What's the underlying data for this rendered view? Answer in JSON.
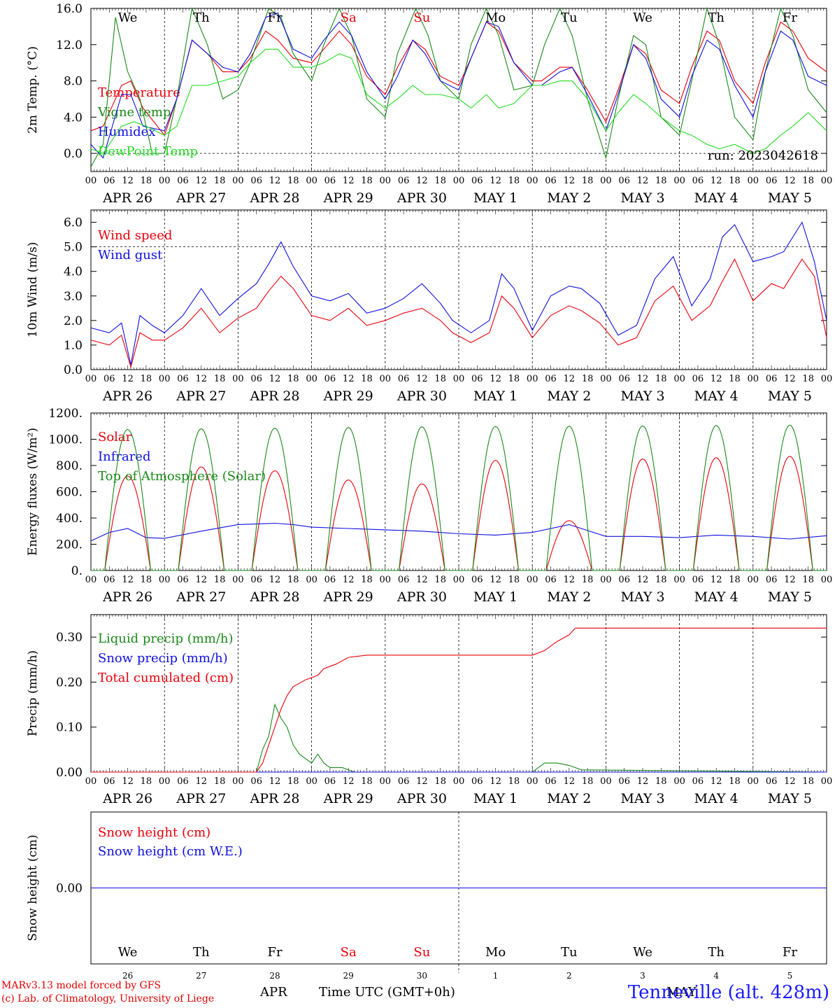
{
  "colors": {
    "red": "#e8000b",
    "green": "#1a8a1a",
    "blue": "#1010e0",
    "lightgreen": "#22dd22",
    "purple": "#8000a0",
    "axis": "#000000"
  },
  "time_axis": {
    "hour_labels": [
      "00",
      "06",
      "12",
      "18"
    ],
    "date_labels": [
      "APR 26",
      "APR 27",
      "APR 28",
      "APR 29",
      "APR 30",
      "MAY  1",
      "MAY  2",
      "MAY  3",
      "MAY  4",
      "MAY  5"
    ],
    "weekdays": [
      "We",
      "Th",
      "Fr",
      "Sa",
      "Su",
      "Mo",
      "Tu",
      "We",
      "Th",
      "Fr"
    ],
    "weekday_colors": [
      "black",
      "black",
      "black",
      "red",
      "red",
      "black",
      "black",
      "black",
      "black",
      "black"
    ],
    "day_numbers": [
      "26",
      "27",
      "28",
      "29",
      "30",
      "1",
      "2",
      "3",
      "4",
      "5"
    ],
    "month_labels": [
      "APR",
      "MAY"
    ],
    "xlabel": "Time UTC (GMT+0h)"
  },
  "footer": {
    "model_line": "MARv3.13 model forced by GFS",
    "credit_line": "(c) Lab. of Climatology, University of Liege",
    "station": "Tenneville (alt. 428m)"
  },
  "chart_data": [
    {
      "type": "line",
      "id": "temp",
      "ylabel": "2m Temp. (°C)",
      "ylim": [
        -2.0,
        16.0
      ],
      "yticks": [
        "16.0",
        "12.0",
        "8.0",
        "4.0",
        "0.0"
      ],
      "ytick_values": [
        16,
        12,
        8,
        4,
        0
      ],
      "hline": 0,
      "annotation": "run: 2023042618",
      "x_unit": "hours since APR 26 00 UTC",
      "x_range": [
        0,
        240
      ],
      "series": [
        {
          "name": "Temperature",
          "color": "red",
          "x": [
            0,
            4,
            10,
            13,
            17,
            24,
            28,
            33,
            38,
            43,
            48,
            52,
            57,
            61,
            66,
            72,
            76,
            81,
            85,
            90,
            96,
            100,
            105,
            109,
            114,
            120,
            124,
            129,
            133,
            138,
            144,
            147,
            153,
            157,
            162,
            168,
            172,
            177,
            181,
            186,
            192,
            196,
            201,
            205,
            210,
            216,
            220,
            225,
            229,
            234,
            240
          ],
          "y": [
            2.5,
            3.0,
            7.5,
            8.0,
            5.0,
            2.0,
            6.0,
            12.5,
            11.0,
            9.0,
            9.0,
            10.5,
            13.5,
            12.5,
            10.5,
            10.0,
            11.5,
            13.5,
            12.0,
            8.5,
            6.5,
            9.5,
            12.5,
            11.5,
            8.5,
            7.5,
            10.5,
            14.5,
            13.5,
            10.0,
            8.0,
            8.0,
            9.5,
            9.5,
            7.0,
            3.5,
            7.0,
            12.0,
            11.0,
            7.0,
            5.5,
            9.5,
            13.5,
            12.5,
            8.0,
            5.5,
            10.0,
            14.5,
            13.5,
            10.5,
            9.0
          ]
        },
        {
          "name": "Vigne temp",
          "color": "green",
          "x": [
            0,
            4,
            8,
            12,
            16,
            20,
            24,
            28,
            33,
            38,
            43,
            48,
            52,
            58,
            62,
            66,
            72,
            76,
            81,
            85,
            90,
            96,
            100,
            106,
            110,
            114,
            120,
            124,
            129,
            133,
            138,
            144,
            148,
            153,
            157,
            162,
            168,
            172,
            177,
            181,
            186,
            192,
            196,
            201,
            205,
            210,
            216,
            220,
            225,
            229,
            234,
            240
          ],
          "y": [
            -1.5,
            1.0,
            15.0,
            9.0,
            6.0,
            0.0,
            0.0,
            6.0,
            16.0,
            12.0,
            6.0,
            7.0,
            10.0,
            16.0,
            15.0,
            11.0,
            8.0,
            12.0,
            16.0,
            13.0,
            6.0,
            4.0,
            11.0,
            16.0,
            13.0,
            8.0,
            6.0,
            12.0,
            16.0,
            13.0,
            7.0,
            7.5,
            12.0,
            16.0,
            13.0,
            6.0,
            -0.5,
            6.0,
            13.0,
            12.0,
            4.0,
            2.0,
            8.0,
            16.0,
            12.0,
            4.0,
            1.5,
            9.0,
            16.0,
            13.0,
            7.0,
            4.5
          ]
        },
        {
          "name": "Humidex",
          "color": "blue",
          "x": [
            0,
            4,
            10,
            13,
            17,
            24,
            28,
            33,
            38,
            43,
            48,
            52,
            57,
            61,
            66,
            72,
            76,
            81,
            85,
            90,
            96,
            100,
            105,
            109,
            114,
            120,
            124,
            129,
            133,
            138,
            144,
            147,
            153,
            157,
            162,
            168,
            172,
            177,
            181,
            186,
            192,
            196,
            201,
            205,
            210,
            216,
            220,
            225,
            229,
            234,
            240
          ],
          "y": [
            1.0,
            -0.5,
            6.5,
            6.5,
            3.0,
            2.5,
            6.0,
            12.5,
            11.0,
            9.5,
            9.0,
            11.0,
            15.0,
            15.5,
            11.5,
            10.5,
            12.5,
            14.5,
            13.0,
            9.0,
            6.0,
            8.5,
            12.5,
            11.0,
            8.0,
            7.0,
            10.5,
            14.5,
            14.0,
            10.0,
            7.5,
            7.5,
            9.0,
            9.5,
            6.5,
            2.5,
            6.5,
            12.0,
            10.5,
            6.0,
            4.0,
            8.5,
            12.5,
            11.5,
            7.5,
            4.0,
            9.0,
            13.5,
            12.5,
            8.5,
            7.5
          ]
        },
        {
          "name": "DewPoint Temp",
          "color": "lightgreen",
          "x": [
            0,
            4,
            10,
            14,
            18,
            24,
            28,
            33,
            38,
            43,
            48,
            52,
            57,
            61,
            66,
            72,
            76,
            81,
            85,
            90,
            96,
            100,
            105,
            109,
            114,
            120,
            124,
            129,
            133,
            138,
            144,
            148,
            153,
            157,
            162,
            168,
            172,
            177,
            181,
            186,
            192,
            196,
            201,
            205,
            210,
            216,
            220,
            225,
            229,
            234,
            240
          ],
          "y": [
            0.5,
            0.0,
            3.0,
            3.5,
            3.0,
            2.0,
            3.0,
            7.5,
            7.5,
            8.0,
            8.5,
            10.0,
            11.5,
            11.5,
            9.5,
            9.5,
            10.0,
            11.0,
            10.5,
            6.5,
            5.0,
            6.0,
            7.5,
            6.5,
            6.5,
            6.0,
            5.0,
            6.5,
            5.0,
            5.5,
            7.5,
            7.5,
            8.0,
            8.0,
            6.0,
            2.5,
            4.5,
            6.5,
            5.5,
            4.0,
            2.5,
            2.0,
            1.0,
            0.5,
            1.0,
            0.0,
            0.5,
            2.0,
            3.0,
            4.5,
            2.5
          ]
        }
      ]
    },
    {
      "type": "line",
      "id": "wind",
      "ylabel": "10m Wind (m/s)",
      "ylim": [
        0.0,
        6.5
      ],
      "yticks": [
        "6.0",
        "5.0",
        "4.0",
        "3.0",
        "2.0",
        "1.0",
        "0.0"
      ],
      "ytick_values": [
        6,
        5,
        4,
        3,
        2,
        1,
        0
      ],
      "hline": 5,
      "x_unit": "hours since APR 26 00 UTC",
      "x_range": [
        0,
        240
      ],
      "series": [
        {
          "name": "Wind speed",
          "color": "red",
          "x": [
            0,
            6,
            10,
            13,
            16,
            20,
            24,
            30,
            36,
            42,
            48,
            54,
            58,
            62,
            66,
            72,
            78,
            84,
            90,
            96,
            102,
            108,
            114,
            118,
            124,
            130,
            134,
            138,
            144,
            150,
            156,
            160,
            166,
            172,
            178,
            184,
            190,
            196,
            202,
            206,
            210,
            216,
            222,
            226,
            232,
            236,
            240
          ],
          "y": [
            1.2,
            1.0,
            1.4,
            0.1,
            1.5,
            1.2,
            1.2,
            1.7,
            2.5,
            1.5,
            2.1,
            2.5,
            3.2,
            3.8,
            3.3,
            2.2,
            2.0,
            2.5,
            1.8,
            2.0,
            2.3,
            2.5,
            2.0,
            1.5,
            1.1,
            1.5,
            3.0,
            2.5,
            1.3,
            2.2,
            2.6,
            2.4,
            1.9,
            1.0,
            1.3,
            2.8,
            3.4,
            2.0,
            2.6,
            3.6,
            4.5,
            2.8,
            3.5,
            3.3,
            4.5,
            3.8,
            1.3
          ]
        },
        {
          "name": "Wind gust",
          "color": "blue",
          "x": [
            0,
            6,
            10,
            13,
            16,
            20,
            24,
            30,
            36,
            42,
            48,
            54,
            58,
            62,
            66,
            72,
            78,
            84,
            90,
            96,
            102,
            108,
            114,
            118,
            124,
            130,
            134,
            138,
            144,
            150,
            156,
            160,
            166,
            172,
            178,
            184,
            190,
            196,
            202,
            206,
            210,
            216,
            222,
            226,
            232,
            236,
            240
          ],
          "y": [
            1.7,
            1.5,
            1.9,
            0.2,
            2.2,
            1.8,
            1.5,
            2.2,
            3.3,
            2.2,
            2.9,
            3.5,
            4.3,
            5.2,
            4.2,
            3.0,
            2.8,
            3.1,
            2.3,
            2.5,
            2.9,
            3.5,
            2.7,
            2.0,
            1.5,
            2.0,
            3.9,
            3.3,
            1.6,
            3.0,
            3.4,
            3.3,
            2.7,
            1.4,
            1.8,
            3.7,
            4.6,
            2.6,
            3.7,
            5.4,
            5.9,
            4.4,
            4.6,
            4.8,
            6.0,
            4.4,
            2.0
          ]
        }
      ]
    },
    {
      "type": "line",
      "id": "energy",
      "ylabel": "Energy fluxes (W/m²)",
      "ylim": [
        0,
        1200
      ],
      "yticks": [
        "1200.",
        "1000.",
        "800.",
        "600.",
        "400.",
        "200.",
        "0."
      ],
      "ytick_values": [
        1200,
        1000,
        800,
        600,
        400,
        200,
        0
      ],
      "x_unit": "hours since APR 26 00 UTC",
      "x_range": [
        0,
        240
      ],
      "day_length": {
        "sunrise_hour": 4.5,
        "sunset_hour": 19.5
      },
      "series": [
        {
          "name": "Solar",
          "color": "red",
          "daily_peak": [
            720,
            790,
            760,
            690,
            660,
            840,
            380,
            850,
            860,
            870
          ]
        },
        {
          "name": "Infrared",
          "color": "blue",
          "x": [
            0,
            6,
            12,
            18,
            24,
            36,
            48,
            60,
            66,
            72,
            84,
            96,
            108,
            120,
            132,
            144,
            156,
            168,
            180,
            192,
            204,
            216,
            228,
            240
          ],
          "y": [
            225,
            290,
            320,
            250,
            245,
            300,
            350,
            360,
            350,
            330,
            320,
            310,
            300,
            280,
            270,
            290,
            350,
            260,
            260,
            250,
            270,
            260,
            240,
            265
          ]
        },
        {
          "name": "Top of Atmosphere (Solar)",
          "color": "green",
          "daily_peak": [
            1075,
            1080,
            1085,
            1090,
            1095,
            1098,
            1100,
            1102,
            1105,
            1108
          ]
        }
      ]
    },
    {
      "type": "line",
      "id": "precip",
      "ylabel": "Precip (mm/h)",
      "ylim": [
        0.0,
        0.35
      ],
      "yticks": [
        "0.30",
        "0.20",
        "0.10",
        "0.00"
      ],
      "ytick_values": [
        0.3,
        0.2,
        0.1,
        0
      ],
      "x_unit": "hours since APR 26 00 UTC",
      "x_range": [
        0,
        240
      ],
      "series": [
        {
          "name": "Liquid precip (mm/h)",
          "color": "green",
          "x": [
            0,
            54,
            56,
            58,
            60,
            62,
            64,
            66,
            68,
            70,
            72,
            74,
            76,
            78,
            82,
            86,
            144,
            148,
            152,
            156,
            160,
            240
          ],
          "y": [
            0,
            0,
            0.05,
            0.08,
            0.15,
            0.12,
            0.1,
            0.06,
            0.04,
            0.03,
            0.02,
            0.04,
            0.02,
            0.01,
            0.01,
            0,
            0,
            0.02,
            0.02,
            0.015,
            0.005,
            0
          ]
        },
        {
          "name": "Snow precip (mm/h)",
          "color": "blue",
          "x": [
            0,
            240
          ],
          "y": [
            0,
            0
          ]
        },
        {
          "name": "Total cumulated (cm)",
          "color": "red",
          "x": [
            0,
            54,
            56,
            58,
            60,
            62,
            64,
            66,
            70,
            74,
            76,
            80,
            84,
            90,
            96,
            144,
            148,
            152,
            156,
            158,
            240
          ],
          "y": [
            0,
            0,
            0.02,
            0.06,
            0.1,
            0.14,
            0.17,
            0.19,
            0.205,
            0.215,
            0.23,
            0.24,
            0.255,
            0.26,
            0.26,
            0.26,
            0.27,
            0.29,
            0.305,
            0.32,
            0.32
          ]
        }
      ]
    },
    {
      "type": "line",
      "id": "snow",
      "ylabel": "Snow height (cm)",
      "ylim": [
        -1,
        1
      ],
      "yticks": [
        "0.00"
      ],
      "ytick_values": [
        0
      ],
      "x_unit": "hours since APR 26 00 UTC",
      "x_range": [
        0,
        240
      ],
      "series": [
        {
          "name": "Snow height (cm)",
          "color": "red",
          "x": [
            0,
            240
          ],
          "y": [
            0,
            0
          ]
        },
        {
          "name": "Snow height (cm W.E.)",
          "color": "blue",
          "x": [
            0,
            240
          ],
          "y": [
            0,
            0
          ]
        }
      ]
    }
  ]
}
